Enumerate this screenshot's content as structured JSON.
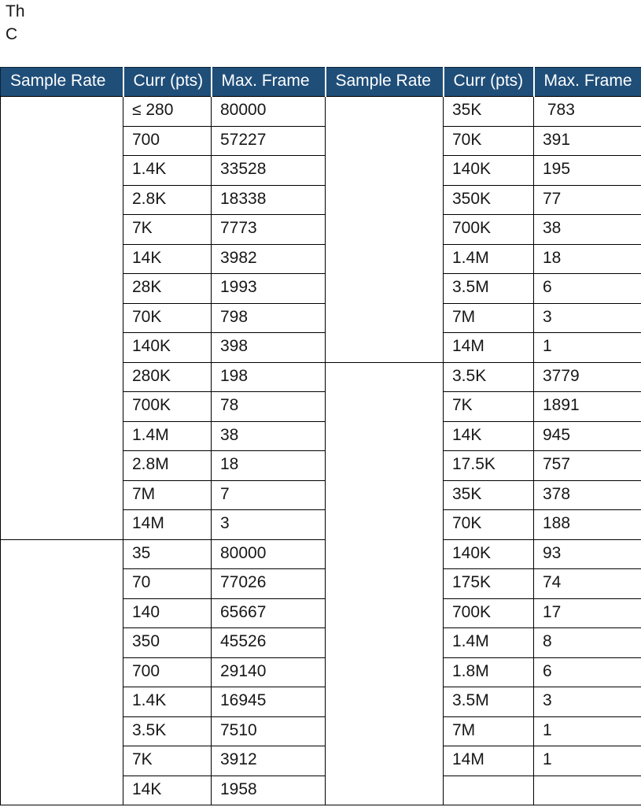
{
  "page": {
    "text_lines": [
      "Th",
      "C"
    ]
  },
  "table": {
    "columns": [
      "Sample Rate",
      "Curr (pts)",
      "Max. Frame",
      "Sample Rate",
      "Curr (pts)",
      "Max. Frame"
    ],
    "left": {
      "groups": [
        {
          "sample_rate": "",
          "rows": [
            [
              "≤ 280",
              "80000"
            ],
            [
              "700",
              "57227"
            ],
            [
              "1.4K",
              "33528"
            ],
            [
              "2.8K",
              "18338"
            ],
            [
              "7K",
              "7773"
            ],
            [
              "14K",
              "3982"
            ],
            [
              "28K",
              "1993"
            ],
            [
              "70K",
              "798"
            ],
            [
              "140K",
              "398"
            ],
            [
              "280K",
              "198"
            ],
            [
              "700K",
              "78"
            ],
            [
              "1.4M",
              "38"
            ],
            [
              "2.8M",
              "18"
            ],
            [
              "7M",
              "7"
            ],
            [
              "14M",
              "3"
            ]
          ]
        },
        {
          "sample_rate": "",
          "rows": [
            [
              "35",
              "80000"
            ],
            [
              "70",
              "77026"
            ],
            [
              "140",
              "65667"
            ],
            [
              "350",
              "45526"
            ],
            [
              "700",
              "29140"
            ],
            [
              "1.4K",
              "16945"
            ],
            [
              "3.5K",
              "7510"
            ],
            [
              "7K",
              "3912"
            ],
            [
              "14K",
              "1958"
            ]
          ]
        }
      ]
    },
    "right": {
      "groups": [
        {
          "sample_rate": "",
          "rows": [
            [
              "35K",
              " 783"
            ],
            [
              "70K",
              "391"
            ],
            [
              "140K",
              "195"
            ],
            [
              "350K",
              "77"
            ],
            [
              "700K",
              "38"
            ],
            [
              "1.4M",
              "18"
            ],
            [
              "3.5M",
              "6"
            ],
            [
              "7M",
              "3"
            ],
            [
              "14M",
              "1"
            ]
          ]
        },
        {
          "sample_rate": "",
          "rows": [
            [
              "3.5K",
              "3779"
            ],
            [
              "7K",
              "1891"
            ],
            [
              "14K",
              "945"
            ],
            [
              "17.5K",
              "757"
            ],
            [
              "35K",
              "378"
            ],
            [
              "70K",
              "188"
            ],
            [
              "140K",
              "93"
            ],
            [
              "175K",
              "74"
            ],
            [
              "700K",
              "17"
            ],
            [
              "1.4M",
              "8"
            ],
            [
              "1.8M",
              "6"
            ],
            [
              "3.5M",
              "3"
            ],
            [
              "7M",
              "1"
            ],
            [
              "14M",
              "1"
            ],
            [
              "",
              ""
            ]
          ]
        }
      ]
    },
    "colors": {
      "header_bg": "#1F4E79",
      "header_text": "#FFFFFF",
      "border": "#000000"
    }
  }
}
